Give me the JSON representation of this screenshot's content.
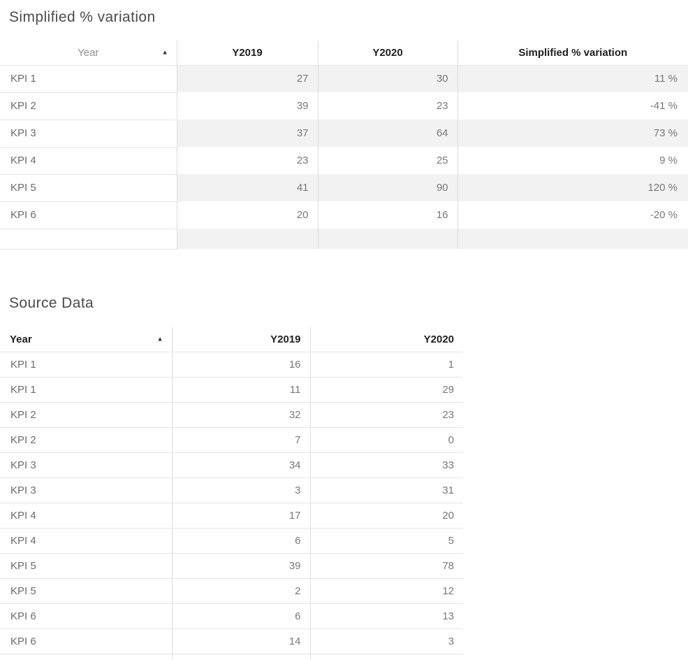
{
  "visuals": {
    "matrix": {
      "title": "Simplified % variation",
      "header": {
        "year": "Year",
        "y2019": "Y2019",
        "y2020": "Y2020",
        "variation": "Simplified % variation",
        "sort_icon": "▲",
        "sorted_by": "Year ascending"
      },
      "rows": [
        [
          "KPI 1",
          "27",
          "30",
          "11 %"
        ],
        [
          "KPI 2",
          "39",
          "23",
          "-41 %"
        ],
        [
          "KPI 3",
          "37",
          "64",
          "73 %"
        ],
        [
          "KPI 4",
          "23",
          "25",
          "9 %"
        ],
        [
          "KPI 5",
          "41",
          "90",
          "120 %"
        ],
        [
          "KPI 6",
          "20",
          "16",
          "-20 %"
        ]
      ]
    },
    "source": {
      "title": "Source Data",
      "header": {
        "year": "Year",
        "y2019": "Y2019",
        "y2020": "Y2020",
        "sort_icon": "▲",
        "sorted_by": "Year ascending"
      },
      "rows": [
        [
          "KPI 1",
          "16",
          "1"
        ],
        [
          "KPI 1",
          "11",
          "29"
        ],
        [
          "KPI 2",
          "32",
          "23"
        ],
        [
          "KPI 2",
          "7",
          "0"
        ],
        [
          "KPI 3",
          "34",
          "33"
        ],
        [
          "KPI 3",
          "3",
          "31"
        ],
        [
          "KPI 4",
          "17",
          "20"
        ],
        [
          "KPI 4",
          "6",
          "5"
        ],
        [
          "KPI 5",
          "39",
          "78"
        ],
        [
          "KPI 5",
          "2",
          "12"
        ],
        [
          "KPI 6",
          "6",
          "13"
        ],
        [
          "KPI 6",
          "14",
          "3"
        ]
      ]
    }
  },
  "chart_data": [
    {
      "type": "table",
      "title": "Simplified % variation",
      "columns": [
        "Year",
        "Y2019",
        "Y2020",
        "Simplified % variation"
      ],
      "rows": [
        [
          "KPI 1",
          27,
          30,
          "11 %"
        ],
        [
          "KPI 2",
          39,
          23,
          "-41 %"
        ],
        [
          "KPI 3",
          37,
          64,
          "73 %"
        ],
        [
          "KPI 4",
          23,
          25,
          "9 %"
        ],
        [
          "KPI 5",
          41,
          90,
          "120 %"
        ],
        [
          "KPI 6",
          20,
          16,
          "-20 %"
        ]
      ],
      "sort": "Year ascending",
      "banded_rows": true
    },
    {
      "type": "table",
      "title": "Source Data",
      "columns": [
        "Year",
        "Y2019",
        "Y2020"
      ],
      "rows": [
        [
          "KPI 1",
          16,
          1
        ],
        [
          "KPI 1",
          11,
          29
        ],
        [
          "KPI 2",
          32,
          23
        ],
        [
          "KPI 2",
          7,
          0
        ],
        [
          "KPI 3",
          34,
          33
        ],
        [
          "KPI 3",
          3,
          31
        ],
        [
          "KPI 4",
          17,
          20
        ],
        [
          "KPI 4",
          6,
          5
        ],
        [
          "KPI 5",
          39,
          78
        ],
        [
          "KPI 5",
          2,
          12
        ],
        [
          "KPI 6",
          6,
          13
        ],
        [
          "KPI 6",
          14,
          3
        ]
      ],
      "sort": "Year ascending",
      "banded_rows": false
    }
  ],
  "colors": {
    "background": "#ffffff",
    "title_text": "#4a4a4a",
    "header_text_bold": "#1f1f1f",
    "header_text_muted": "#8f8f8f",
    "cell_text": "#787878",
    "band_background": "#f2f2f2",
    "grid_horizontal": "#e5e5e5",
    "grid_vertical": "#dcdcdc",
    "sort_icon": "#2e2e2e"
  }
}
